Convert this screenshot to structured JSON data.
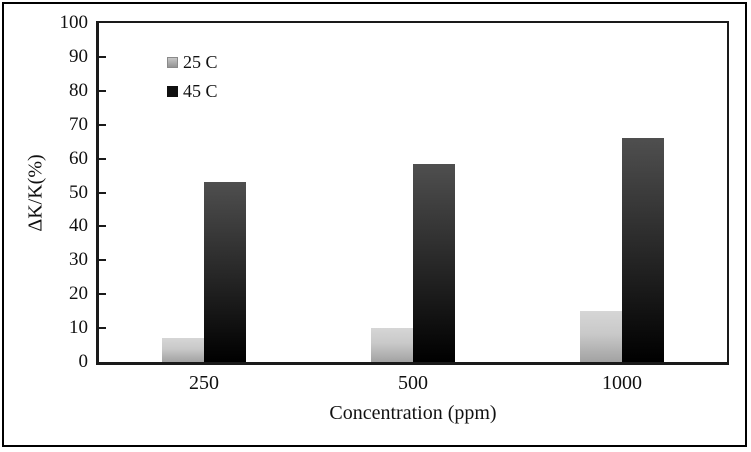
{
  "chart_data": {
    "type": "bar",
    "categories": [
      "250",
      "500",
      "1000"
    ],
    "series": [
      {
        "name": "25 C",
        "values": [
          7,
          10,
          15
        ],
        "color_top": "#d6d6d6",
        "color_bottom": "#a2a2a2"
      },
      {
        "name": "45 C",
        "values": [
          53,
          58.5,
          66
        ],
        "color_top": "#4f4f4f",
        "color_bottom": "#000000"
      }
    ],
    "title": "",
    "xlabel": "Concentration (ppm)",
    "ylabel": "ΔK/K(%)",
    "ylim": [
      0,
      100
    ],
    "y_ticks": [
      0,
      10,
      20,
      30,
      40,
      50,
      60,
      70,
      80,
      90,
      100
    ],
    "grid": false,
    "legend_position": "upper-left-inside",
    "axis_color": "#1a1a1a",
    "background_color": "#ffffff"
  }
}
